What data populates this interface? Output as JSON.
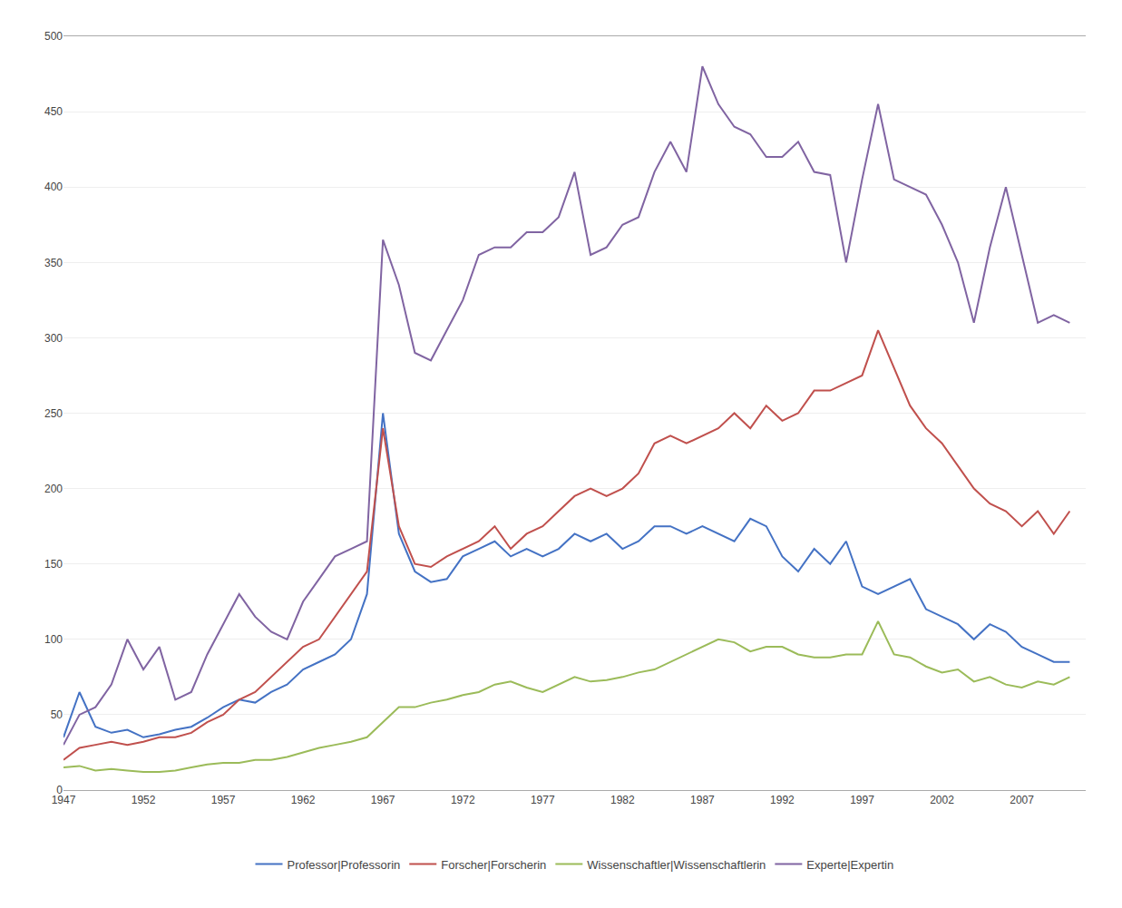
{
  "chart_data": {
    "type": "line",
    "x": [
      1947,
      1948,
      1949,
      1950,
      1951,
      1952,
      1953,
      1954,
      1955,
      1956,
      1957,
      1958,
      1959,
      1960,
      1961,
      1962,
      1963,
      1964,
      1965,
      1966,
      1967,
      1968,
      1969,
      1970,
      1971,
      1972,
      1973,
      1974,
      1975,
      1976,
      1977,
      1978,
      1979,
      1980,
      1981,
      1982,
      1983,
      1984,
      1985,
      1986,
      1987,
      1988,
      1989,
      1990,
      1991,
      1992,
      1993,
      1994,
      1995,
      1996,
      1997,
      1998,
      1999,
      2000,
      2001,
      2002,
      2003,
      2004,
      2005,
      2006,
      2007,
      2008,
      2009,
      2010
    ],
    "series": [
      {
        "name": "Professor|Professorin",
        "color": "#4472C4",
        "values": [
          35,
          65,
          42,
          38,
          40,
          35,
          37,
          40,
          42,
          48,
          55,
          60,
          58,
          65,
          70,
          80,
          85,
          90,
          100,
          130,
          250,
          170,
          145,
          138,
          140,
          155,
          160,
          165,
          155,
          160,
          155,
          160,
          170,
          165,
          170,
          160,
          165,
          175,
          175,
          170,
          175,
          170,
          165,
          180,
          175,
          155,
          145,
          160,
          150,
          165,
          135,
          130,
          135,
          140,
          120,
          115,
          110,
          100,
          110,
          105,
          95,
          90,
          85,
          85
        ]
      },
      {
        "name": "Forscher|Forscherin",
        "color": "#C0504D",
        "values": [
          20,
          28,
          30,
          32,
          30,
          32,
          35,
          35,
          38,
          45,
          50,
          60,
          65,
          75,
          85,
          95,
          100,
          115,
          130,
          145,
          240,
          175,
          150,
          148,
          155,
          160,
          165,
          175,
          160,
          170,
          175,
          185,
          195,
          200,
          195,
          200,
          210,
          230,
          235,
          230,
          235,
          240,
          250,
          240,
          255,
          245,
          250,
          265,
          265,
          270,
          275,
          305,
          280,
          255,
          240,
          230,
          215,
          200,
          190,
          185,
          175,
          185,
          170,
          185
        ]
      },
      {
        "name": "Wissenschaftler|Wissenschaftlerin",
        "color": "#9BBB59",
        "values": [
          15,
          16,
          13,
          14,
          13,
          12,
          12,
          13,
          15,
          17,
          18,
          18,
          20,
          20,
          22,
          25,
          28,
          30,
          32,
          35,
          45,
          55,
          55,
          58,
          60,
          63,
          65,
          70,
          72,
          68,
          65,
          70,
          75,
          72,
          73,
          75,
          78,
          80,
          85,
          90,
          95,
          100,
          98,
          92,
          95,
          95,
          90,
          88,
          88,
          90,
          90,
          112,
          90,
          88,
          82,
          78,
          80,
          72,
          75,
          70,
          68,
          72,
          70,
          75
        ]
      },
      {
        "name": "Experte|Expertin",
        "color": "#8064A2",
        "values": [
          30,
          50,
          55,
          70,
          100,
          80,
          95,
          60,
          65,
          90,
          110,
          130,
          115,
          105,
          100,
          125,
          140,
          155,
          160,
          165,
          365,
          335,
          290,
          285,
          305,
          325,
          355,
          360,
          360,
          370,
          370,
          380,
          410,
          355,
          360,
          375,
          380,
          410,
          430,
          410,
          480,
          455,
          440,
          435,
          420,
          420,
          430,
          410,
          408,
          350,
          405,
          455,
          405,
          400,
          395,
          375,
          350,
          310,
          360,
          400,
          355,
          310,
          315,
          310
        ]
      }
    ],
    "xlim": [
      1947,
      2011
    ],
    "xticks": [
      1947,
      1952,
      1957,
      1962,
      1967,
      1972,
      1977,
      1982,
      1987,
      1992,
      1997,
      2002,
      2007
    ],
    "ylim": [
      0,
      500
    ],
    "yticks": [
      0,
      50,
      100,
      150,
      200,
      250,
      300,
      350,
      400,
      450,
      500
    ],
    "grid": "y",
    "legend": "bottom"
  }
}
